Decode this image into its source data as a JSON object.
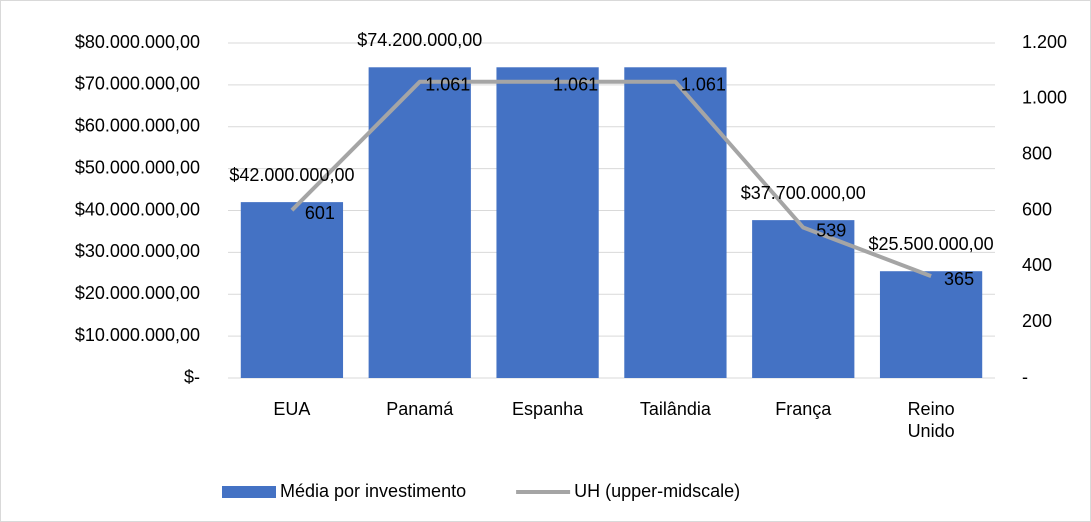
{
  "chart_data": {
    "type": "bar",
    "categories": [
      "EUA",
      "Panamá",
      "Espanha",
      "Tailândia",
      "França",
      "Reino Unido"
    ],
    "series": [
      {
        "name": "Média por investimento",
        "type": "bar",
        "color": "#4472c4",
        "values": [
          42000000,
          74200000,
          74200000,
          74200000,
          37700000,
          25500000
        ],
        "value_labels": [
          "$42.000.000,00",
          "$74.200.000,00",
          null,
          null,
          "$37.700.000,00",
          "$25.500.000,00"
        ]
      },
      {
        "name": "UH (upper-midscale)",
        "type": "line",
        "axis": "y2",
        "color": "#a5a5a5",
        "values": [
          601,
          1061,
          1061,
          1061,
          539,
          365
        ],
        "value_labels": [
          "601",
          "1.061",
          "1.061",
          "1.061",
          "539",
          "365"
        ]
      }
    ],
    "ylim": [
      0,
      80000000
    ],
    "yticks": [
      {
        "value": 0,
        "label": "$-"
      },
      {
        "value": 10000000,
        "label": "$10.000.000,00"
      },
      {
        "value": 20000000,
        "label": "$20.000.000,00"
      },
      {
        "value": 30000000,
        "label": "$30.000.000,00"
      },
      {
        "value": 40000000,
        "label": "$40.000.000,00"
      },
      {
        "value": 50000000,
        "label": "$50.000.000,00"
      },
      {
        "value": 60000000,
        "label": "$60.000.000,00"
      },
      {
        "value": 70000000,
        "label": "$70.000.000,00"
      },
      {
        "value": 80000000,
        "label": "$80.000.000,00"
      }
    ],
    "y2lim": [
      0,
      1200
    ],
    "y2ticks": [
      {
        "value": 0,
        "label": "-"
      },
      200,
      400,
      600,
      800,
      {
        "value": 1000,
        "label": "1.000"
      },
      {
        "value": 1200,
        "label": "1.200"
      }
    ],
    "grid": true,
    "legend": "bottom"
  }
}
